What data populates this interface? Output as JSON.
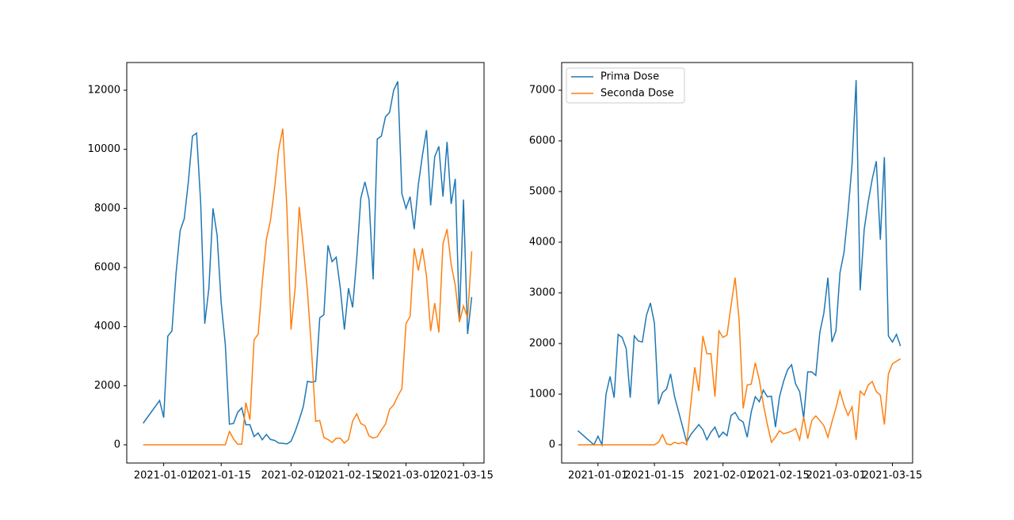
{
  "chart_data": [
    {
      "type": "line",
      "x": [
        "2020-12-27",
        "2020-12-31",
        "2021-01-01",
        "2021-01-02",
        "2021-01-03",
        "2021-01-04",
        "2021-01-05",
        "2021-01-06",
        "2021-01-07",
        "2021-01-08",
        "2021-01-09",
        "2021-01-10",
        "2021-01-11",
        "2021-01-12",
        "2021-01-13",
        "2021-01-14",
        "2021-01-15",
        "2021-01-16",
        "2021-01-17",
        "2021-01-18",
        "2021-01-19",
        "2021-01-20",
        "2021-01-21",
        "2021-01-22",
        "2021-01-23",
        "2021-01-24",
        "2021-01-25",
        "2021-01-26",
        "2021-01-27",
        "2021-01-28",
        "2021-01-29",
        "2021-01-30",
        "2021-01-31",
        "2021-02-01",
        "2021-02-02",
        "2021-02-03",
        "2021-02-04",
        "2021-02-05",
        "2021-02-06",
        "2021-02-07",
        "2021-02-08",
        "2021-02-09",
        "2021-02-10",
        "2021-02-11",
        "2021-02-12",
        "2021-02-13",
        "2021-02-14",
        "2021-02-15",
        "2021-02-16",
        "2021-02-17",
        "2021-02-18",
        "2021-02-19",
        "2021-02-20",
        "2021-02-21",
        "2021-02-22",
        "2021-02-23",
        "2021-02-24",
        "2021-02-25",
        "2021-02-26",
        "2021-02-27",
        "2021-02-28",
        "2021-03-01",
        "2021-03-02",
        "2021-03-03",
        "2021-03-04",
        "2021-03-05",
        "2021-03-06",
        "2021-03-07",
        "2021-03-08",
        "2021-03-09",
        "2021-03-10",
        "2021-03-11",
        "2021-03-12",
        "2021-03-13",
        "2021-03-14",
        "2021-03-15",
        "2021-03-16",
        "2021-03-17"
      ],
      "series": [
        {
          "color": "#1f77b4",
          "values": [
            730,
            1500,
            920,
            3680,
            3850,
            5800,
            7250,
            7650,
            8900,
            10450,
            10550,
            8200,
            4100,
            5300,
            8000,
            7100,
            4800,
            3400,
            700,
            720,
            1100,
            1250,
            680,
            680,
            280,
            400,
            170,
            350,
            180,
            150,
            60,
            50,
            30,
            120,
            450,
            850,
            1300,
            2150,
            2120,
            2150,
            4300,
            4400,
            6750,
            6200,
            6350,
            5300,
            3900,
            5300,
            4650,
            6300,
            8350,
            8900,
            8300,
            5600,
            10350,
            10450,
            11100,
            11250,
            12000,
            12300,
            8500,
            8000,
            8400,
            7300,
            8800,
            9800,
            10650,
            8100,
            9750,
            10100,
            8400,
            10250,
            8150,
            9000,
            4250,
            8300,
            3750,
            5000
          ]
        },
        {
          "color": "#ff7f0e",
          "values": [
            0,
            0,
            0,
            0,
            0,
            0,
            0,
            0,
            0,
            0,
            0,
            0,
            0,
            0,
            0,
            0,
            0,
            0,
            450,
            200,
            20,
            20,
            1430,
            850,
            3550,
            3750,
            5500,
            6950,
            7600,
            8700,
            10000,
            10700,
            8000,
            3900,
            5300,
            8050,
            6700,
            5200,
            3200,
            800,
            820,
            250,
            180,
            80,
            220,
            220,
            60,
            180,
            800,
            1050,
            720,
            650,
            300,
            230,
            270,
            500,
            700,
            1200,
            1350,
            1650,
            1900,
            4100,
            4350,
            6650,
            5900,
            6650,
            5700,
            3850,
            4800,
            3800,
            6800,
            7300,
            6100,
            5400,
            4150,
            4700,
            4300,
            6550
          ]
        }
      ],
      "xlim": [
        "2020-12-23",
        "2021-03-20"
      ],
      "xticks": [
        "2021-01-01",
        "2021-01-15",
        "2021-02-01",
        "2021-02-15",
        "2021-03-01",
        "2021-03-15"
      ],
      "ylim": [
        -616,
        12938
      ],
      "yticks": [
        0,
        2000,
        4000,
        6000,
        8000,
        10000,
        12000
      ]
    },
    {
      "type": "line",
      "x": [
        "2020-12-27",
        "2020-12-31",
        "2021-01-01",
        "2021-01-02",
        "2021-01-03",
        "2021-01-04",
        "2021-01-05",
        "2021-01-06",
        "2021-01-07",
        "2021-01-08",
        "2021-01-09",
        "2021-01-10",
        "2021-01-11",
        "2021-01-12",
        "2021-01-13",
        "2021-01-14",
        "2021-01-15",
        "2021-01-16",
        "2021-01-17",
        "2021-01-18",
        "2021-01-19",
        "2021-01-20",
        "2021-01-21",
        "2021-01-22",
        "2021-01-23",
        "2021-01-24",
        "2021-01-25",
        "2021-01-26",
        "2021-01-27",
        "2021-01-28",
        "2021-01-29",
        "2021-01-30",
        "2021-01-31",
        "2021-02-01",
        "2021-02-02",
        "2021-02-03",
        "2021-02-04",
        "2021-02-05",
        "2021-02-06",
        "2021-02-07",
        "2021-02-08",
        "2021-02-09",
        "2021-02-10",
        "2021-02-11",
        "2021-02-12",
        "2021-02-13",
        "2021-02-14",
        "2021-02-15",
        "2021-02-16",
        "2021-02-17",
        "2021-02-18",
        "2021-02-19",
        "2021-02-20",
        "2021-02-21",
        "2021-02-22",
        "2021-02-23",
        "2021-02-24",
        "2021-02-25",
        "2021-02-26",
        "2021-02-27",
        "2021-02-28",
        "2021-03-01",
        "2021-03-02",
        "2021-03-03",
        "2021-03-04",
        "2021-03-05",
        "2021-03-06",
        "2021-03-07",
        "2021-03-08",
        "2021-03-09",
        "2021-03-10",
        "2021-03-11",
        "2021-03-12",
        "2021-03-13",
        "2021-03-14",
        "2021-03-15",
        "2021-03-16",
        "2021-03-17"
      ],
      "series": [
        {
          "name": "Prima Dose",
          "color": "#1f77b4",
          "values": [
            280,
            0,
            170,
            0,
            1000,
            1350,
            930,
            2180,
            2120,
            1900,
            930,
            2150,
            2050,
            2030,
            2550,
            2800,
            2400,
            800,
            1030,
            1100,
            1400,
            950,
            650,
            350,
            50,
            200,
            300,
            400,
            300,
            100,
            250,
            350,
            150,
            250,
            180,
            580,
            640,
            500,
            450,
            150,
            650,
            950,
            850,
            1080,
            950,
            960,
            350,
            950,
            1250,
            1480,
            1580,
            1200,
            1050,
            530,
            1440,
            1440,
            1370,
            2220,
            2600,
            3300,
            2030,
            2250,
            3400,
            3800,
            4600,
            5550,
            7200,
            3050,
            4250,
            4800,
            5250,
            5600,
            4050,
            5680,
            2150,
            2030,
            2180,
            1950
          ]
        },
        {
          "name": "Seconda Dose",
          "color": "#ff7f0e",
          "values": [
            0,
            0,
            0,
            0,
            0,
            0,
            0,
            0,
            0,
            0,
            0,
            0,
            0,
            0,
            0,
            0,
            0,
            50,
            200,
            20,
            0,
            50,
            20,
            50,
            0,
            800,
            1530,
            1060,
            2150,
            1800,
            1800,
            950,
            2250,
            2120,
            2170,
            2750,
            3300,
            2450,
            720,
            1180,
            1200,
            1620,
            1280,
            800,
            400,
            50,
            150,
            280,
            220,
            240,
            270,
            320,
            100,
            550,
            120,
            480,
            570,
            480,
            380,
            150,
            450,
            730,
            1060,
            780,
            580,
            750,
            100,
            1060,
            980,
            1180,
            1250,
            1050,
            980,
            400,
            1400,
            1600,
            1650,
            1700
          ]
        }
      ],
      "xlim": [
        "2020-12-23",
        "2021-03-20"
      ],
      "xticks": [
        "2021-01-01",
        "2021-01-15",
        "2021-02-01",
        "2021-02-15",
        "2021-03-01",
        "2021-03-15"
      ],
      "ylim": [
        -359,
        7547
      ],
      "yticks": [
        0,
        1000,
        2000,
        3000,
        4000,
        5000,
        6000,
        7000
      ],
      "legend": "upper left"
    }
  ]
}
